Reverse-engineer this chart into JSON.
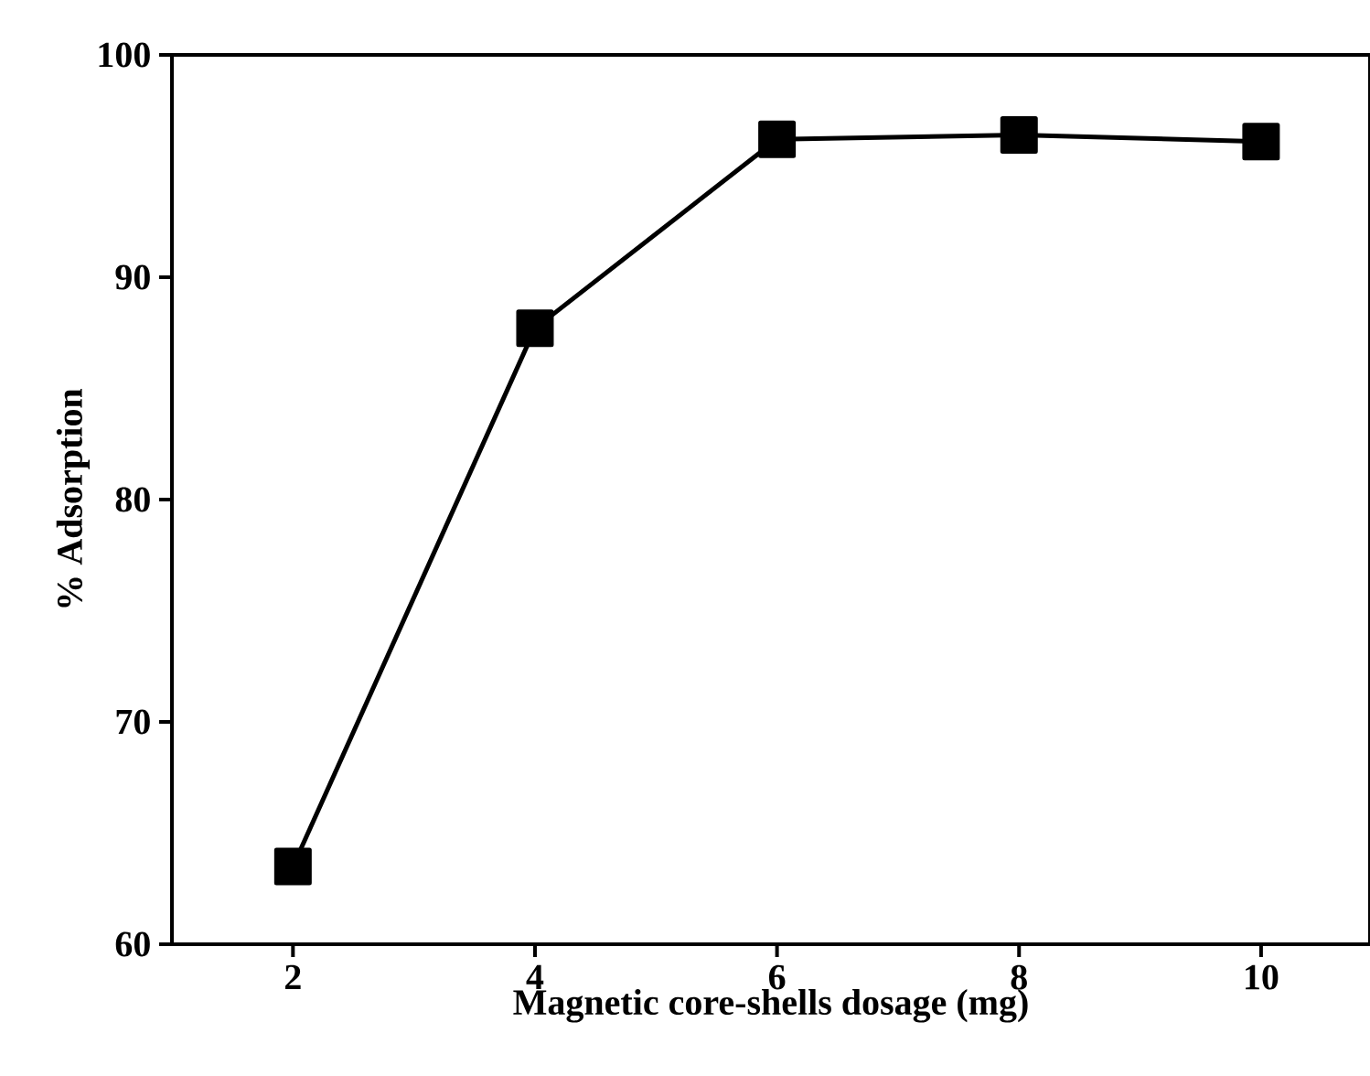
{
  "chart_data": {
    "type": "line",
    "xlabel": "Magnetic core-shells dosage (mg)",
    "ylabel": "% Adsorption",
    "x": [
      2,
      4,
      6,
      8,
      10
    ],
    "series": [
      {
        "color": "#000000",
        "values": [
          63.5,
          87.7,
          96.2,
          96.4,
          96.1
        ]
      }
    ],
    "xlim": [
      1,
      10.9
    ],
    "ylim": [
      60,
      100
    ],
    "xticks": [
      2,
      4,
      6,
      8,
      10
    ],
    "yticks": [
      60,
      70,
      80,
      90,
      100
    ],
    "marker": "square",
    "line_style": "solid"
  }
}
